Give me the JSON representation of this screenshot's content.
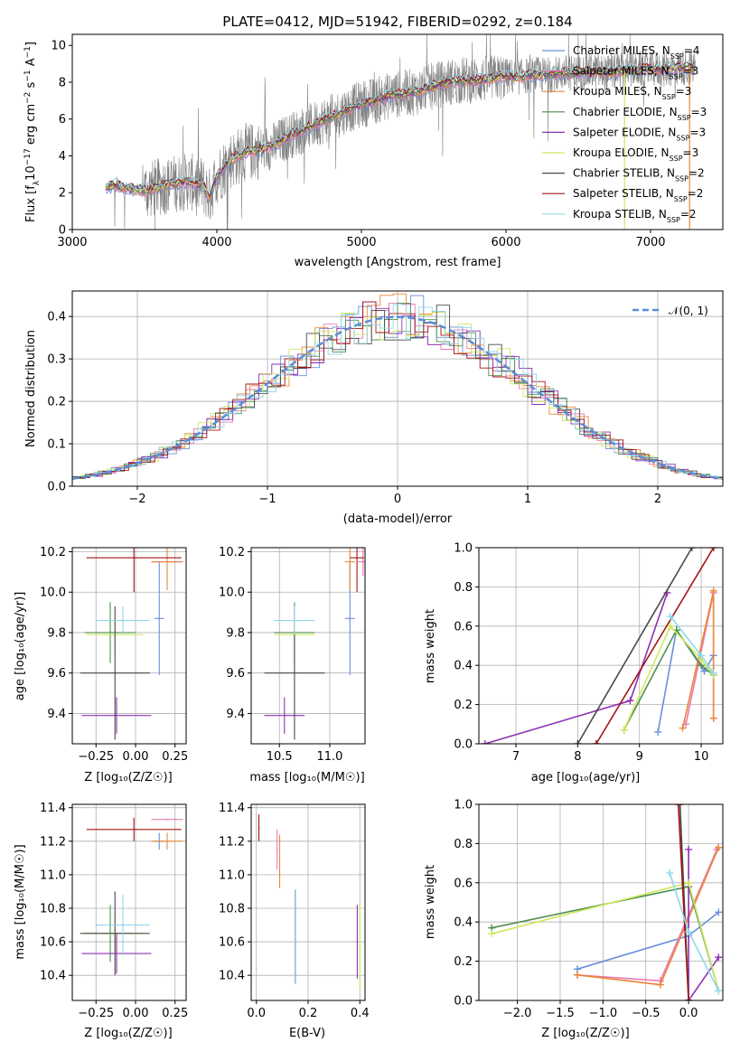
{
  "colors": {
    "chabrier_miles": "#6a8fdd",
    "salpeter_miles": "#e97ab0",
    "kroupa_miles": "#e8883a",
    "chabrier_elodie": "#4f8f4f",
    "salpeter_elodie": "#8e30b5",
    "kroupa_elodie": "#cfe85e",
    "chabrier_stelib": "#4a4a4a",
    "salpeter_stelib": "#a31515",
    "kroupa_stelib": "#8fd8ea",
    "data": "#808080",
    "normal": "#5b8ed8",
    "grid": "#b0b0b0"
  },
  "chart_data": [
    {
      "id": "spectrum",
      "type": "line",
      "title": "PLATE=0412, MJD=51942, FIBERID=0292, z=0.184",
      "xlabel": "wavelength [Angstrom, rest frame]",
      "ylabel": "Flux [f_λ 10^-17 erg cm^-2 s^-1 A^-1]",
      "xlim": [
        3000,
        7500
      ],
      "ylim": [
        0,
        10.6
      ],
      "xticks": [
        "3000",
        "4000",
        "5000",
        "6000",
        "7000"
      ],
      "yticks": [
        "0",
        "2",
        "4",
        "6",
        "8",
        "10"
      ],
      "grid": false,
      "legend_position": "top-right",
      "legend": [
        {
          "label": "Chabrier MILES, N",
          "sub": "SSP",
          "suffix": "=4",
          "color": "chabrier_miles"
        },
        {
          "label": "Salpeter MILES, N",
          "sub": "SSP",
          "suffix": "=3",
          "color": "salpeter_miles"
        },
        {
          "label": "Kroupa MILES, N",
          "sub": "SSP",
          "suffix": "=3",
          "color": "kroupa_miles"
        },
        {
          "label": "Chabrier ELODIE, N",
          "sub": "SSP",
          "suffix": "=3",
          "color": "chabrier_elodie"
        },
        {
          "label": "Salpeter ELODIE, N",
          "sub": "SSP",
          "suffix": "=3",
          "color": "salpeter_elodie"
        },
        {
          "label": "Kroupa ELODIE, N",
          "sub": "SSP",
          "suffix": "=3",
          "color": "kroupa_elodie"
        },
        {
          "label": "Chabrier STELIB, N",
          "sub": "SSP",
          "suffix": "=2",
          "color": "chabrier_stelib"
        },
        {
          "label": "Salpeter STELIB, N",
          "sub": "SSP",
          "suffix": "=2",
          "color": "salpeter_stelib"
        },
        {
          "label": "Kroupa STELIB, N",
          "sub": "SSP",
          "suffix": "=2",
          "color": "kroupa_stelib"
        }
      ],
      "model_curve": {
        "x": [
          3230,
          3300,
          3400,
          3500,
          3600,
          3700,
          3800,
          3900,
          3950,
          4000,
          4100,
          4200,
          4300,
          4400,
          4500,
          4600,
          4700,
          4800,
          4900,
          5000,
          5100,
          5200,
          5300,
          5400,
          5500,
          5600,
          5700,
          5800,
          5900,
          6000,
          6100,
          6200,
          6300,
          6400,
          6500,
          6600,
          6700,
          6800,
          6900,
          7000,
          7100,
          7200,
          7300
        ],
        "y": [
          2.3,
          2.4,
          2.2,
          2.1,
          2.3,
          2.5,
          2.6,
          2.4,
          1.8,
          2.9,
          3.8,
          4.2,
          4.3,
          4.6,
          5.1,
          5.4,
          5.8,
          6.1,
          6.5,
          6.8,
          7.0,
          7.3,
          7.4,
          7.5,
          7.8,
          8.0,
          8.1,
          8.1,
          8.2,
          8.3,
          8.3,
          8.4,
          8.4,
          8.5,
          8.5,
          8.6,
          8.5,
          8.6,
          8.7,
          8.7,
          8.7,
          8.8,
          8.8
        ]
      }
    },
    {
      "id": "residuals",
      "type": "line",
      "xlabel": "(data-model)/error",
      "ylabel": "Normed distribution",
      "xlim": [
        -2.5,
        2.5
      ],
      "ylim": [
        0,
        0.46
      ],
      "xticks": [
        "−2",
        "−1",
        "0",
        "1",
        "2"
      ],
      "yticks": [
        "0.0",
        "0.1",
        "0.2",
        "0.3",
        "0.4"
      ],
      "grid": true,
      "legend_position": "top-right",
      "legend_label": "𝒩(0, 1)"
    },
    {
      "id": "age_vs_Z",
      "type": "scatter",
      "xlabel": "Z [log₁₀(Z/Z☉)]",
      "ylabel": "age  [log₁₀(age/yr)]",
      "xlim": [
        -0.4,
        0.32
      ],
      "ylim": [
        9.25,
        10.22
      ],
      "xticks": [
        "−0.25",
        "0.00",
        "0.25"
      ],
      "yticks": [
        "9.4",
        "9.6",
        "9.8",
        "10.0",
        "10.2"
      ],
      "points": [
        {
          "color": "chabrier_miles",
          "x": 0.15,
          "xerr": 0.03,
          "y": 9.87,
          "yerr": 0.28
        },
        {
          "color": "salpeter_miles",
          "x": 0.2,
          "xerr": 0.1,
          "y": 10.15,
          "yerr": 0.0
        },
        {
          "color": "kroupa_miles",
          "x": 0.2,
          "xerr": 0.1,
          "y": 10.15,
          "yerr": 0.14
        },
        {
          "color": "chabrier_elodie",
          "x": -0.16,
          "xerr": 0.16,
          "y": 9.8,
          "yerr": 0.15
        },
        {
          "color": "salpeter_elodie",
          "x": -0.12,
          "xerr": 0.22,
          "y": 9.39,
          "yerr": 0.09
        },
        {
          "color": "kroupa_elodie",
          "x": -0.13,
          "xerr": 0.18,
          "y": 9.79,
          "yerr": 0.1
        },
        {
          "color": "chabrier_stelib",
          "x": -0.13,
          "xerr": 0.22,
          "y": 9.6,
          "yerr": 0.33
        },
        {
          "color": "salpeter_stelib",
          "x": -0.01,
          "xerr": 0.3,
          "y": 10.17,
          "yerr": 0.17
        },
        {
          "color": "kroupa_stelib",
          "x": -0.08,
          "xerr": 0.17,
          "y": 9.86,
          "yerr": 0.07
        }
      ]
    },
    {
      "id": "age_vs_mass",
      "type": "scatter",
      "xlabel": "mass [log₁₀(M/M☉)]",
      "xlim": [
        10.22,
        11.35
      ],
      "ylim": [
        9.25,
        10.22
      ],
      "xticks": [
        "10.5",
        "11.0"
      ],
      "yticks": [
        "9.4",
        "9.6",
        "9.8",
        "10.0",
        "10.2"
      ],
      "points": [
        {
          "color": "chabrier_miles",
          "x": 11.2,
          "xerr": 0.05,
          "y": 9.87,
          "yerr": 0.28
        },
        {
          "color": "salpeter_miles",
          "x": 11.33,
          "xerr": 0.05,
          "y": 10.15,
          "yerr": 0.07
        },
        {
          "color": "kroupa_miles",
          "x": 11.2,
          "xerr": 0.05,
          "y": 10.15,
          "yerr": 0.14
        },
        {
          "color": "chabrier_elodie",
          "x": 10.65,
          "xerr": 0.2,
          "y": 9.8,
          "yerr": 0.15
        },
        {
          "color": "salpeter_elodie",
          "x": 10.55,
          "xerr": 0.2,
          "y": 9.39,
          "yerr": 0.09
        },
        {
          "color": "kroupa_elodie",
          "x": 10.65,
          "xerr": 0.2,
          "y": 9.79,
          "yerr": 0.1
        },
        {
          "color": "chabrier_stelib",
          "x": 10.65,
          "xerr": 0.3,
          "y": 9.6,
          "yerr": 0.33
        },
        {
          "color": "salpeter_stelib",
          "x": 11.27,
          "xerr": 0.07,
          "y": 10.17,
          "yerr": 0.17
        },
        {
          "color": "kroupa_stelib",
          "x": 10.65,
          "xerr": 0.2,
          "y": 9.86,
          "yerr": 0.07
        }
      ]
    },
    {
      "id": "mass_vs_Z",
      "type": "scatter",
      "xlabel": "Z [log₁₀(Z/Z☉)]",
      "ylabel": "mass [log₁₀(M/M☉)]",
      "xlim": [
        -0.4,
        0.32
      ],
      "ylim": [
        10.25,
        11.42
      ],
      "xticks": [
        "−0.25",
        "0.00",
        "0.25"
      ],
      "yticks": [
        "10.4",
        "10.6",
        "10.8",
        "11.0",
        "11.2",
        "11.4"
      ],
      "points": [
        {
          "color": "chabrier_miles",
          "x": 0.15,
          "xerr": 0.03,
          "y": 11.2,
          "yerr": 0.05
        },
        {
          "color": "salpeter_miles",
          "x": 0.2,
          "xerr": 0.1,
          "y": 11.33,
          "yerr": 0.0
        },
        {
          "color": "kroupa_miles",
          "x": 0.2,
          "xerr": 0.1,
          "y": 11.2,
          "yerr": 0.05
        },
        {
          "color": "chabrier_elodie",
          "x": -0.16,
          "xerr": 0.16,
          "y": 10.65,
          "yerr": 0.17
        },
        {
          "color": "salpeter_elodie",
          "x": -0.12,
          "xerr": 0.22,
          "y": 10.53,
          "yerr": 0.12
        },
        {
          "color": "kroupa_elodie",
          "x": -0.13,
          "xerr": 0.18,
          "y": 10.65,
          "yerr": 0.12
        },
        {
          "color": "chabrier_stelib",
          "x": -0.13,
          "xerr": 0.22,
          "y": 10.65,
          "yerr": 0.25
        },
        {
          "color": "salpeter_stelib",
          "x": -0.01,
          "xerr": 0.3,
          "y": 11.27,
          "yerr": 0.07
        },
        {
          "color": "kroupa_stelib",
          "x": -0.08,
          "xerr": 0.17,
          "y": 10.7,
          "yerr": 0.18
        }
      ]
    },
    {
      "id": "mass_vs_EBV",
      "type": "scatter",
      "xlabel": "E(B-V)",
      "xlim": [
        -0.02,
        0.42
      ],
      "ylim": [
        10.25,
        11.42
      ],
      "xticks": [
        "0.0",
        "0.2",
        "0.4"
      ],
      "yticks": [
        "10.4",
        "10.6",
        "10.8",
        "11.0",
        "11.2",
        "11.4"
      ],
      "points": [
        {
          "color": "chabrier_miles",
          "x": 0.15,
          "y": 10.63,
          "yerr": 0.28
        },
        {
          "color": "salpeter_miles",
          "x": 0.08,
          "y": 11.15,
          "yerr": 0.12
        },
        {
          "color": "kroupa_miles",
          "x": 0.09,
          "y": 11.08,
          "yerr": 0.16
        },
        {
          "color": "chabrier_elodie",
          "x": 0.15,
          "y": 10.63,
          "yerr": 0.28
        },
        {
          "color": "salpeter_elodie",
          "x": 0.39,
          "y": 10.6,
          "yerr": 0.22
        },
        {
          "color": "kroupa_elodie",
          "x": 0.4,
          "y": 10.57,
          "yerr": 0.26
        },
        {
          "color": "chabrier_stelib",
          "x": 0.15,
          "y": 10.63,
          "yerr": 0.28
        },
        {
          "color": "salpeter_stelib",
          "x": 0.01,
          "y": 11.28,
          "yerr": 0.08
        },
        {
          "color": "kroupa_stelib",
          "x": 0.15,
          "y": 10.63,
          "yerr": 0.28
        }
      ]
    },
    {
      "id": "weight_vs_age",
      "type": "line",
      "xlabel": "age  [log₁₀(age/yr)]",
      "ylabel": "mass weight",
      "xlim": [
        6.4,
        10.35
      ],
      "ylim": [
        0,
        1.0
      ],
      "xticks": [
        "7",
        "8",
        "9",
        "10"
      ],
      "yticks": [
        "0.0",
        "0.2",
        "0.4",
        "0.6",
        "0.8",
        "1.0"
      ],
      "grid": true,
      "series": [
        {
          "color": "chabrier_miles",
          "x": [
            9.3,
            9.6,
            10.05,
            10.2
          ],
          "y": [
            0.06,
            0.58,
            0.37,
            0.45
          ]
        },
        {
          "color": "salpeter_miles",
          "x": [
            9.75,
            10.2,
            10.2
          ],
          "y": [
            0.1,
            0.77,
            0.13
          ]
        },
        {
          "color": "kroupa_miles",
          "x": [
            9.7,
            10.2,
            10.2
          ],
          "y": [
            0.08,
            0.78,
            0.13
          ]
        },
        {
          "color": "chabrier_elodie",
          "x": [
            8.75,
            9.6,
            10.0,
            10.2
          ],
          "y": [
            0.07,
            0.58,
            0.4,
            0.35
          ]
        },
        {
          "color": "salpeter_elodie",
          "x": [
            6.5,
            8.85,
            9.45
          ],
          "y": [
            0.0,
            0.22,
            0.77
          ]
        },
        {
          "color": "kroupa_elodie",
          "x": [
            8.75,
            9.5,
            10.0,
            10.2
          ],
          "y": [
            0.07,
            0.6,
            0.43,
            0.35
          ]
        },
        {
          "color": "chabrier_stelib",
          "x": [
            8.0,
            9.85
          ],
          "y": [
            0.0,
            1.0
          ]
        },
        {
          "color": "salpeter_stelib",
          "x": [
            8.3,
            10.2
          ],
          "y": [
            0.0,
            1.0
          ]
        },
        {
          "color": "kroupa_stelib",
          "x": [
            9.5,
            10.0,
            10.2
          ],
          "y": [
            0.65,
            0.45,
            0.36
          ]
        }
      ]
    },
    {
      "id": "weight_vs_Z",
      "type": "line",
      "xlabel": "Z [log₁₀(Z/Z☉)]",
      "ylabel": "mass weight",
      "xlim": [
        -2.45,
        0.4
      ],
      "ylim": [
        0,
        1.0
      ],
      "xticks": [
        "−2.0",
        "−1.5",
        "−1.0",
        "−0.5",
        "0.0"
      ],
      "yticks": [
        "0.0",
        "0.2",
        "0.4",
        "0.6",
        "0.8",
        "1.0"
      ],
      "grid": true,
      "series": [
        {
          "color": "chabrier_miles",
          "x": [
            -1.3,
            0.0,
            0.35
          ],
          "y": [
            0.16,
            0.33,
            0.45
          ]
        },
        {
          "color": "salpeter_miles",
          "x": [
            -1.3,
            -0.33,
            0.33
          ],
          "y": [
            0.13,
            0.1,
            0.77
          ]
        },
        {
          "color": "kroupa_miles",
          "x": [
            -1.3,
            -0.33,
            0.35
          ],
          "y": [
            0.13,
            0.08,
            0.78
          ]
        },
        {
          "color": "chabrier_elodie",
          "x": [
            -2.3,
            0.0,
            0.35
          ],
          "y": [
            0.37,
            0.58,
            0.05
          ]
        },
        {
          "color": "salpeter_elodie",
          "x": [
            0.0,
            0.0,
            0.35
          ],
          "y": [
            0.77,
            0.0,
            0.22
          ]
        },
        {
          "color": "kroupa_elodie",
          "x": [
            -2.3,
            0.0,
            0.35
          ],
          "y": [
            0.34,
            0.6,
            0.05
          ]
        },
        {
          "color": "chabrier_stelib",
          "x": [
            -0.1,
            0.0
          ],
          "y": [
            1.0,
            0.0
          ]
        },
        {
          "color": "salpeter_stelib",
          "x": [
            -0.12,
            0.0
          ],
          "y": [
            1.0,
            0.0
          ]
        },
        {
          "color": "kroupa_stelib",
          "x": [
            -0.22,
            0.0,
            0.35
          ],
          "y": [
            0.65,
            0.35,
            0.05
          ]
        }
      ]
    }
  ]
}
